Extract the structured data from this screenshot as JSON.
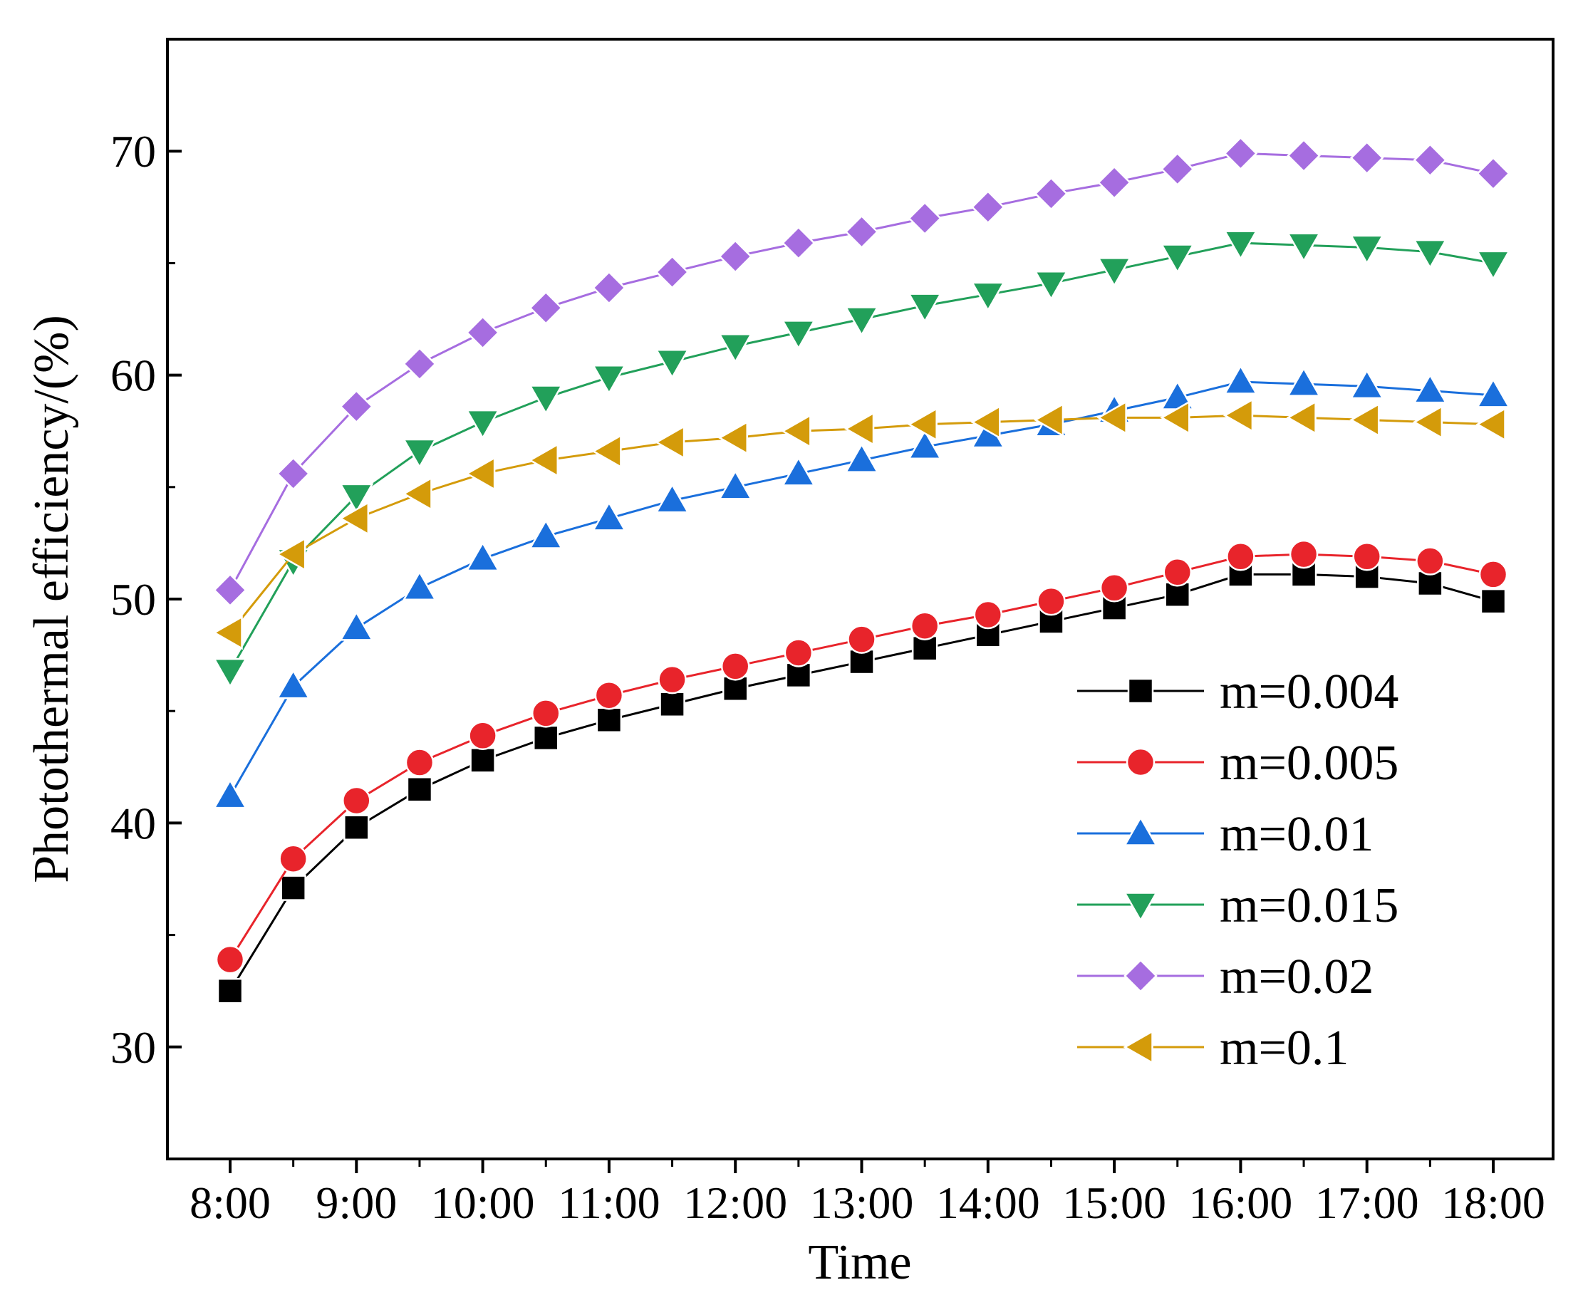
{
  "chart_data": {
    "type": "line",
    "title": "",
    "xlabel": "Time",
    "ylabel": "Photothermal efficiency/(%)",
    "ylim": [
      25,
      75
    ],
    "y_ticks": [
      30,
      40,
      50,
      60,
      70
    ],
    "x": [
      8,
      8.5,
      9,
      9.5,
      10,
      10.5,
      11,
      11.5,
      12,
      12.5,
      13,
      13.5,
      14,
      14.5,
      15,
      15.5,
      16,
      16.5,
      17,
      17.5,
      18
    ],
    "x_tick_values": [
      8,
      9,
      10,
      11,
      12,
      13,
      14,
      15,
      16,
      17,
      18
    ],
    "x_tick_labels": [
      "8:00",
      "9:00",
      "10:00",
      "11:00",
      "12:00",
      "13:00",
      "14:00",
      "15:00",
      "16:00",
      "17:00",
      "18:00"
    ],
    "legend_position": "bottom-right",
    "grid": false,
    "series": [
      {
        "name": "m=0.004",
        "color": "#000000",
        "marker": "square",
        "values": [
          32.5,
          37.1,
          39.8,
          41.5,
          42.8,
          43.8,
          44.6,
          45.3,
          46.0,
          46.6,
          47.2,
          47.8,
          48.4,
          49.0,
          49.6,
          50.2,
          51.1,
          51.1,
          51.0,
          50.7,
          49.9
        ]
      },
      {
        "name": "m=0.005",
        "color": "#e8242b",
        "marker": "circle",
        "values": [
          33.9,
          38.4,
          41.0,
          42.7,
          43.9,
          44.9,
          45.7,
          46.4,
          47.0,
          47.6,
          48.2,
          48.8,
          49.3,
          49.9,
          50.5,
          51.2,
          51.9,
          52.0,
          51.9,
          51.7,
          51.1
        ]
      },
      {
        "name": "m=0.01",
        "color": "#1a6fdc",
        "marker": "triangle-up",
        "values": [
          41.2,
          46.1,
          48.7,
          50.5,
          51.8,
          52.8,
          53.6,
          54.4,
          55.0,
          55.6,
          56.2,
          56.8,
          57.3,
          57.8,
          58.4,
          59.0,
          59.7,
          59.6,
          59.5,
          59.3,
          59.1
        ]
      },
      {
        "name": "m=0.015",
        "color": "#22a05a",
        "marker": "triangle-down",
        "values": [
          46.8,
          51.7,
          54.6,
          56.6,
          57.9,
          59.0,
          59.9,
          60.6,
          61.3,
          61.9,
          62.5,
          63.1,
          63.6,
          64.1,
          64.7,
          65.3,
          65.9,
          65.8,
          65.7,
          65.5,
          65.0
        ]
      },
      {
        "name": "m=0.02",
        "color": "#a66de0",
        "marker": "diamond",
        "values": [
          50.4,
          55.6,
          58.6,
          60.5,
          61.9,
          63.0,
          63.9,
          64.6,
          65.3,
          65.9,
          66.4,
          67.0,
          67.5,
          68.1,
          68.6,
          69.2,
          69.9,
          69.8,
          69.7,
          69.6,
          69.0
        ]
      },
      {
        "name": "m=0.1",
        "color": "#d49b0a",
        "marker": "triangle-left",
        "values": [
          48.5,
          52.0,
          53.6,
          54.7,
          55.6,
          56.2,
          56.6,
          57.0,
          57.2,
          57.5,
          57.6,
          57.8,
          57.9,
          58.0,
          58.1,
          58.1,
          58.2,
          58.1,
          58.0,
          57.9,
          57.8
        ]
      }
    ]
  }
}
